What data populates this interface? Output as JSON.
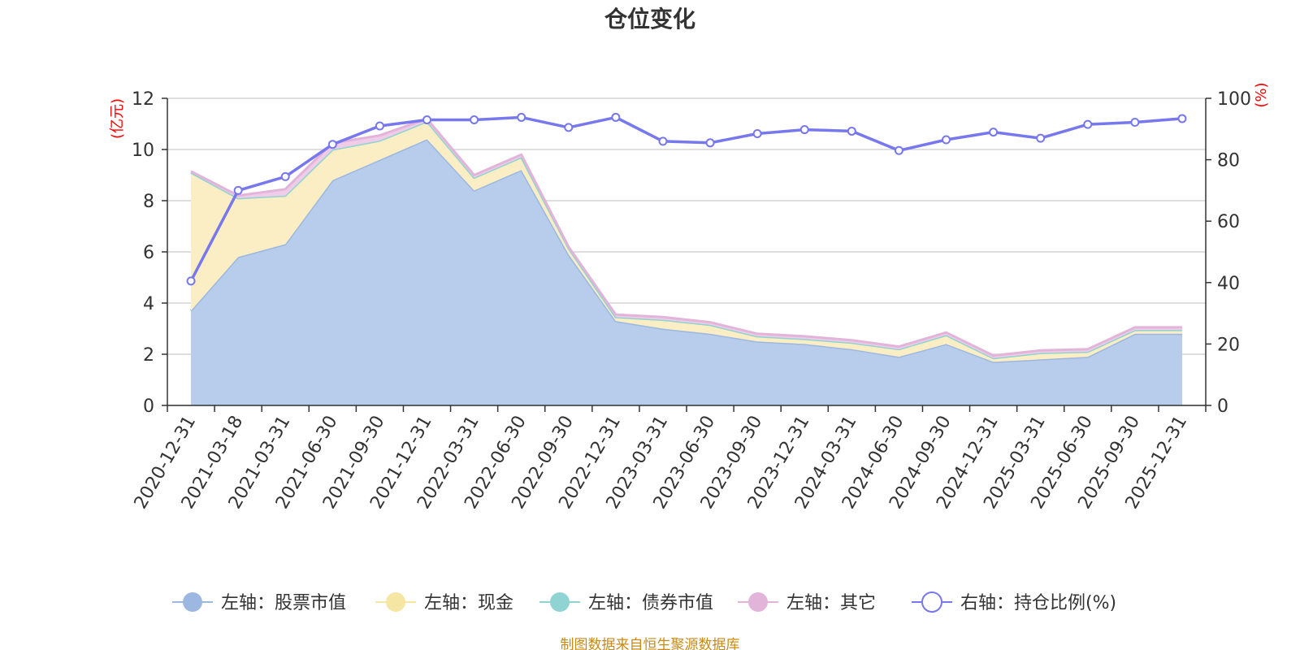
{
  "chart_data": {
    "type": "area",
    "title": "仓位变化",
    "source": "制图数据来自恒生聚源数据库",
    "left_axis": {
      "unit": "(亿元)",
      "ticks": [
        "0",
        "2",
        "4",
        "6",
        "8",
        "10",
        "12"
      ],
      "ylim": [
        0,
        12
      ]
    },
    "right_axis": {
      "unit": "(%)",
      "ticks": [
        "0",
        "20",
        "40",
        "60",
        "80",
        "100"
      ],
      "ylim": [
        0,
        100
      ]
    },
    "categories": [
      "2020-12-31",
      "2021-03-18",
      "2021-03-31",
      "2021-06-30",
      "2021-09-30",
      "2021-12-31",
      "2022-03-31",
      "2022-06-30",
      "2022-09-30",
      "2022-12-31",
      "2023-03-31",
      "2023-06-30",
      "2023-09-30",
      "2023-12-31",
      "2024-03-31",
      "2024-06-30",
      "2024-09-30",
      "2024-12-31",
      "2025-03-31",
      "2025-06-30",
      "2025-09-30",
      "2025-12-31"
    ],
    "series": [
      {
        "name": "左轴：股票市值",
        "axis": "left",
        "color": "#9cb8e0",
        "fill": "#b7cdeb",
        "values": [
          3.7,
          5.8,
          6.3,
          8.8,
          9.6,
          10.4,
          8.4,
          9.2,
          5.9,
          3.3,
          3.0,
          2.8,
          2.5,
          2.4,
          2.2,
          1.9,
          2.4,
          1.7,
          1.8,
          1.9,
          2.8,
          2.8
        ]
      },
      {
        "name": "左轴：现金",
        "axis": "left",
        "color": "#f5e6a3",
        "fill": "#fbeec4",
        "values": [
          5.4,
          2.3,
          1.9,
          1.2,
          0.75,
          0.7,
          0.5,
          0.5,
          0.25,
          0.15,
          0.35,
          0.35,
          0.2,
          0.2,
          0.25,
          0.3,
          0.35,
          0.15,
          0.25,
          0.2,
          0.15,
          0.15
        ]
      },
      {
        "name": "左轴：债券市值",
        "axis": "left",
        "color": "#8fd3d3",
        "fill": "#a6dcdc",
        "values": [
          0,
          0,
          0,
          0,
          0,
          0,
          0,
          0,
          0,
          0,
          0,
          0,
          0,
          0,
          0,
          0,
          0,
          0,
          0,
          0,
          0,
          0
        ]
      },
      {
        "name": "左轴：其它",
        "axis": "left",
        "color": "#e3b4da",
        "fill": "#efcde8",
        "values": [
          0.05,
          0.1,
          0.25,
          0.25,
          0.2,
          0.1,
          0.1,
          0.1,
          0.05,
          0.1,
          0.1,
          0.1,
          0.1,
          0.1,
          0.1,
          0.1,
          0.1,
          0.1,
          0.1,
          0.1,
          0.1,
          0.1
        ]
      },
      {
        "name": "右轴：持仓比例(%)",
        "axis": "right",
        "color": "#7777ee",
        "type": "line",
        "values": [
          40.5,
          70.0,
          74.5,
          85.0,
          91.0,
          93.0,
          93.0,
          93.8,
          90.5,
          93.8,
          86.0,
          85.5,
          88.5,
          89.8,
          89.3,
          83.0,
          86.5,
          89.0,
          87.0,
          91.5,
          92.2,
          93.4
        ]
      }
    ]
  }
}
